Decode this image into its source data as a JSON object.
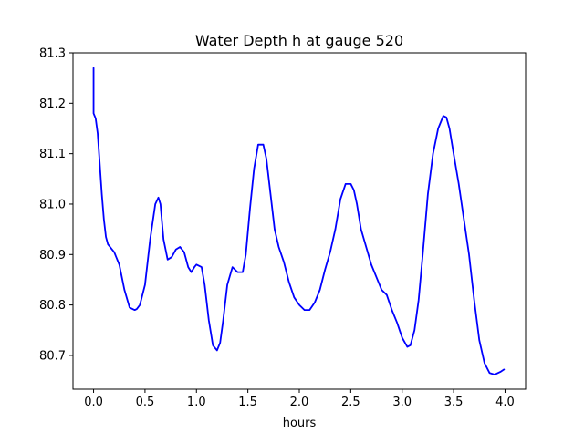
{
  "chart_data": {
    "type": "line",
    "title": "Water Depth h at gauge 520",
    "xlabel": "hours",
    "ylabel": "",
    "xlim": [
      -0.2,
      4.2
    ],
    "ylim": [
      80.633,
      81.3
    ],
    "xticks": [
      0.0,
      0.5,
      1.0,
      1.5,
      2.0,
      2.5,
      3.0,
      3.5,
      4.0
    ],
    "xtick_labels": [
      "0.0",
      "0.5",
      "1.0",
      "1.5",
      "2.0",
      "2.5",
      "3.0",
      "3.5",
      "4.0"
    ],
    "yticks": [
      80.7,
      80.8,
      80.9,
      81.0,
      81.1,
      81.2,
      81.3
    ],
    "ytick_labels": [
      "80.7",
      "80.8",
      "80.9",
      "81.0",
      "81.1",
      "81.2",
      "81.3"
    ],
    "grid": false,
    "legend": "none",
    "series": [
      {
        "color": "#0000ff",
        "x": [
          0.0,
          0.0,
          0.02,
          0.04,
          0.06,
          0.08,
          0.1,
          0.12,
          0.14,
          0.16,
          0.18,
          0.2,
          0.25,
          0.3,
          0.35,
          0.4,
          0.42,
          0.45,
          0.5,
          0.55,
          0.6,
          0.63,
          0.65,
          0.68,
          0.72,
          0.76,
          0.8,
          0.84,
          0.88,
          0.92,
          0.95,
          0.98,
          1.0,
          1.05,
          1.08,
          1.12,
          1.16,
          1.2,
          1.23,
          1.26,
          1.3,
          1.35,
          1.4,
          1.45,
          1.48,
          1.52,
          1.56,
          1.6,
          1.65,
          1.68,
          1.72,
          1.76,
          1.8,
          1.85,
          1.9,
          1.95,
          2.0,
          2.05,
          2.1,
          2.15,
          2.2,
          2.25,
          2.3,
          2.35,
          2.4,
          2.45,
          2.5,
          2.53,
          2.56,
          2.6,
          2.65,
          2.7,
          2.75,
          2.8,
          2.85,
          2.9,
          2.95,
          3.0,
          3.05,
          3.08,
          3.12,
          3.16,
          3.2,
          3.25,
          3.3,
          3.35,
          3.4,
          3.43,
          3.46,
          3.5,
          3.55,
          3.6,
          3.65,
          3.7,
          3.75,
          3.8,
          3.85,
          3.9,
          3.93,
          3.96,
          3.99
        ],
        "y": [
          81.27,
          81.18,
          81.17,
          81.14,
          81.08,
          81.02,
          80.97,
          80.935,
          80.92,
          80.915,
          80.91,
          80.905,
          80.88,
          80.83,
          80.795,
          80.79,
          80.792,
          80.8,
          80.84,
          80.93,
          81.0,
          81.013,
          81.0,
          80.93,
          80.89,
          80.895,
          80.91,
          80.915,
          80.905,
          80.875,
          80.865,
          80.875,
          80.88,
          80.875,
          80.84,
          80.77,
          80.72,
          80.71,
          80.725,
          80.77,
          80.84,
          80.875,
          80.865,
          80.865,
          80.9,
          80.99,
          81.07,
          81.118,
          81.118,
          81.09,
          81.02,
          80.95,
          80.915,
          80.885,
          80.845,
          80.815,
          80.8,
          80.79,
          80.79,
          80.805,
          80.83,
          80.87,
          80.905,
          80.95,
          81.01,
          81.04,
          81.04,
          81.028,
          81.0,
          80.95,
          80.915,
          80.88,
          80.855,
          80.83,
          80.82,
          80.79,
          80.765,
          80.735,
          80.717,
          80.72,
          80.75,
          80.81,
          80.9,
          81.02,
          81.1,
          81.15,
          81.175,
          81.172,
          81.15,
          81.1,
          81.04,
          80.97,
          80.9,
          80.81,
          80.73,
          80.685,
          80.665,
          80.662,
          80.665,
          80.668,
          80.672
        ]
      }
    ]
  }
}
